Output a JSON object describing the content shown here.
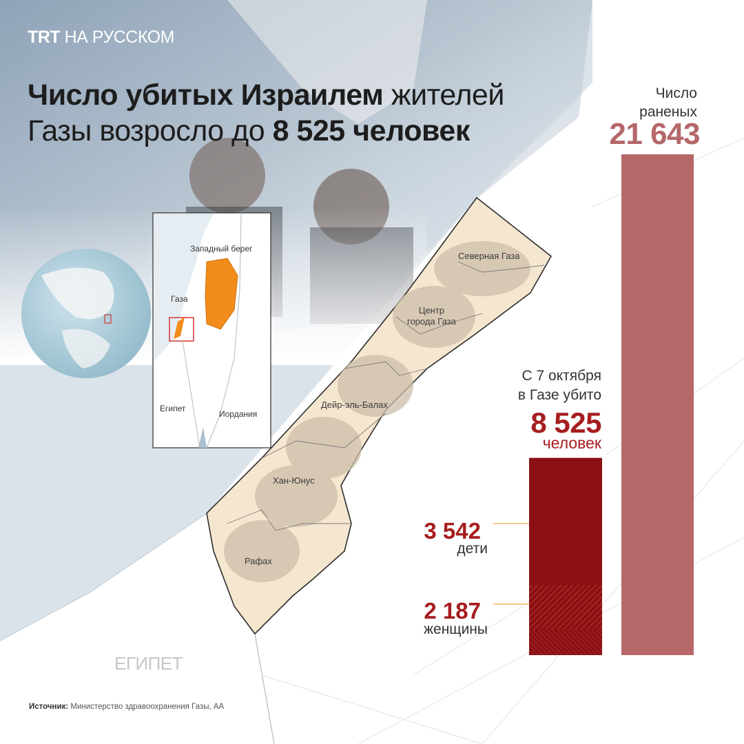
{
  "brand": {
    "name": "TRT",
    "suffix": "НА РУССКОМ"
  },
  "title": {
    "bold_1": "Число убитых Израилем",
    "regular_1": "жителей",
    "regular_2": "Газы возросло до",
    "bold_2": "8 525 человек"
  },
  "map": {
    "regions": [
      "Северная Газа",
      "Центр\nгорода Газа",
      "Дейр-эль-Балах",
      "Хан-Юнус",
      "Рафах"
    ],
    "egypt_label": "ЕГИПЕТ"
  },
  "inset": {
    "west_bank": "Западный берег",
    "gaza": "Газа",
    "egypt": "Египет",
    "jordan": "Иордания"
  },
  "source": {
    "label": "Источник:",
    "text": "Министерство здравоохранения Газы, АА"
  },
  "colors": {
    "killed": "#8a1014",
    "injured": "#b5676a",
    "accent": "#a61d1f",
    "highlight": "#f28c1a",
    "gaza_fill": "#f5e6cf"
  },
  "chart_data": {
    "type": "bar",
    "categories": [
      "убито",
      "раненых"
    ],
    "values": [
      8525,
      21643
    ],
    "ylim": [
      0,
      21643
    ],
    "stacked_breakdown": [
      {
        "name": "дети",
        "value": 3542
      },
      {
        "name": "женщины",
        "value": 2187
      }
    ],
    "labels": {
      "injured_line1": "Число",
      "injured_line2": "раненых",
      "injured_value": "21 643",
      "killed_line1": "С 7 октября",
      "killed_line2": "в Газе убито",
      "killed_value": "8 525",
      "killed_unit": "человек",
      "children_value": "3 542",
      "children_label": "дети",
      "women_value": "2 187",
      "women_label": "женщины"
    }
  }
}
